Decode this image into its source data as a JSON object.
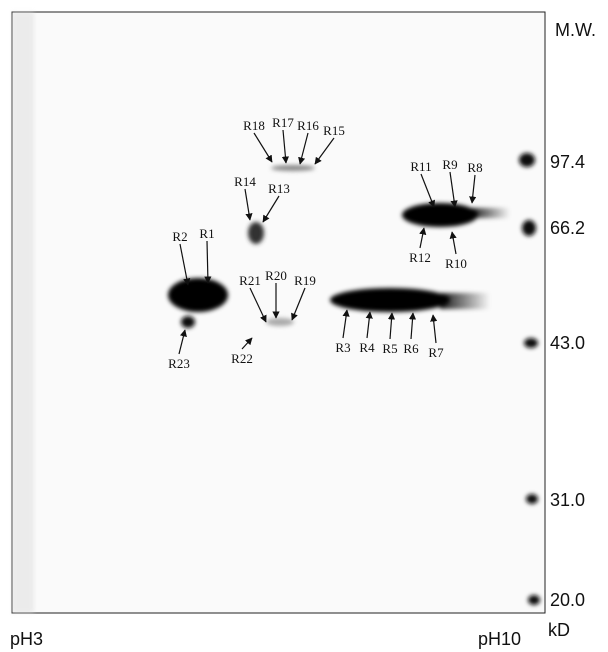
{
  "figure": {
    "mw_header": "M.W.",
    "unit": "kD",
    "ph_left": "pH3",
    "ph_right": "pH10",
    "mw_markers": [
      "97.4",
      "66.2",
      "43.0",
      "31.0",
      "20.0"
    ],
    "spots": [
      "R1",
      "R2",
      "R3",
      "R4",
      "R5",
      "R6",
      "R7",
      "R8",
      "R9",
      "R10",
      "R11",
      "R12",
      "R13",
      "R14",
      "R15",
      "R16",
      "R17",
      "R18",
      "R19",
      "R20",
      "R21",
      "R22",
      "R23"
    ]
  }
}
